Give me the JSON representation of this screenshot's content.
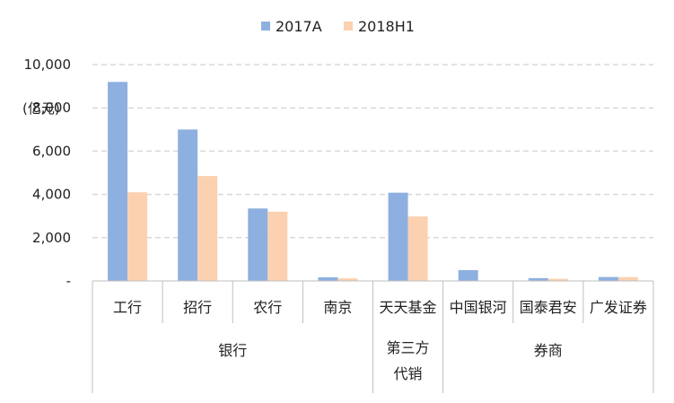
{
  "chart_data": {
    "type": "bar",
    "title": "",
    "ylabel": "(亿元)",
    "ylim": [
      0,
      10000
    ],
    "y_ticks": [
      0,
      2000,
      4000,
      6000,
      8000,
      10000
    ],
    "y_tick_labels": [
      "-",
      "2,000",
      "4,000",
      "6,000",
      "8,000",
      "10,000"
    ],
    "grid": true,
    "legend_position": "top-center",
    "categories": [
      "工行",
      "招行",
      "农行",
      "南京",
      "天天基金",
      "中国银河",
      "国泰君安",
      "广发证券"
    ],
    "groups": [
      {
        "label_lines": [
          "银行"
        ],
        "categories": [
          "工行",
          "招行",
          "农行",
          "南京"
        ]
      },
      {
        "label_lines": [
          "第三方",
          "代销"
        ],
        "categories": [
          "天天基金"
        ]
      },
      {
        "label_lines": [
          "券商"
        ],
        "categories": [
          "中国银河",
          "国泰君安",
          "广发证券"
        ]
      }
    ],
    "series": [
      {
        "name": "2017A",
        "values": [
          9200,
          7000,
          3350,
          170,
          4080,
          500,
          130,
          180
        ]
      },
      {
        "name": "2018H1",
        "values": [
          4100,
          4850,
          3200,
          120,
          2980,
          0,
          100,
          180
        ]
      }
    ],
    "colors": {
      "series_1": "#8eb0e0",
      "series_2": "#fbd1b1",
      "grid": "#d9d9d9",
      "axis": "#bfbfbf"
    }
  }
}
